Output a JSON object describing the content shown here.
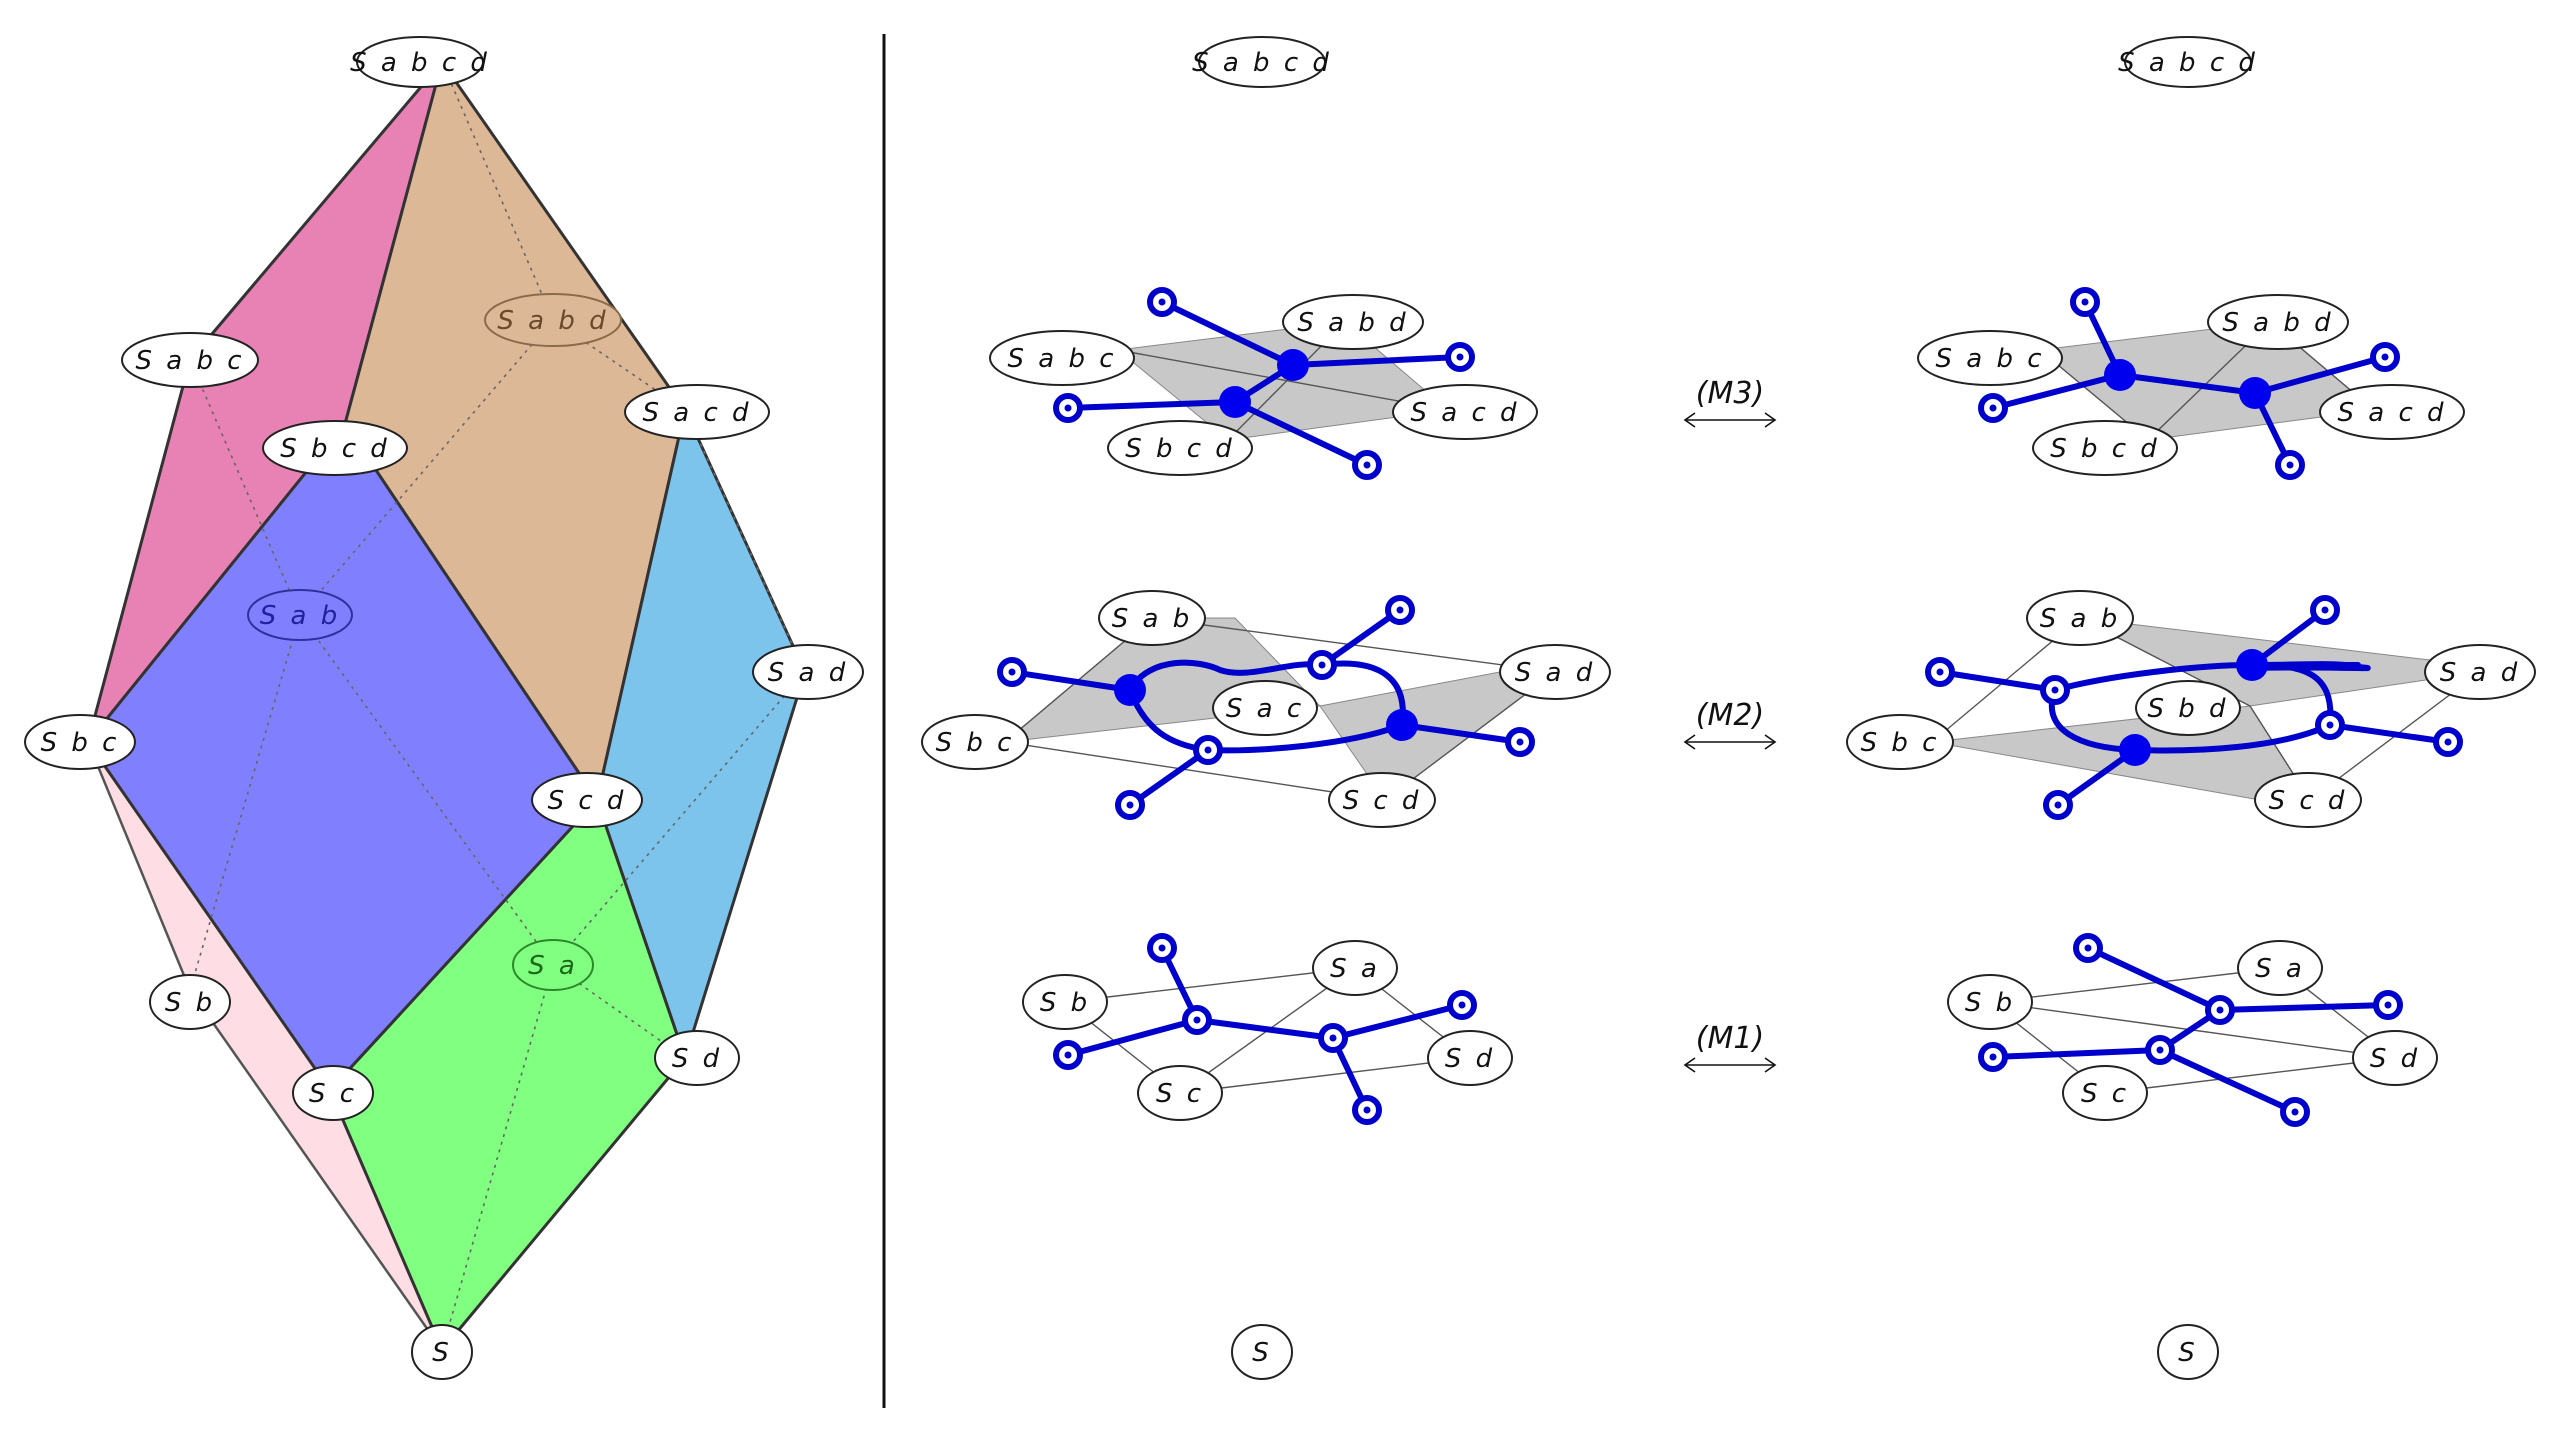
{
  "left_panel": {
    "labels": {
      "S": "S",
      "Sa": "S a",
      "Sb": "S b",
      "Sc": "S c",
      "Sd": "S d",
      "Sab": "S a b",
      "Sbc": "S b c",
      "Scd": "S c d",
      "Sad": "S a d",
      "Sabc": "S a b c",
      "Sbcd": "S b c d",
      "Sacd": "S a c d",
      "Sabd": "S a b d",
      "Sabcd": "S a b c d"
    },
    "face_colors": {
      "pink": "#e882b4",
      "tan": "#ddb896",
      "blue": "#8080ff",
      "cyan": "#7cc4ec",
      "green": "#80ff80",
      "light_pink": "#ffdde4"
    }
  },
  "right_panel": {
    "top_label_left": "S a b c d",
    "top_label_right": "S a b c d",
    "bottom_label_left": "S",
    "bottom_label_right": "S",
    "moves": [
      {
        "arrow_label": "(M3)",
        "left_labels": [
          "S a b c",
          "S a b d",
          "S a c d",
          "S b c d"
        ],
        "right_labels": [
          "S a b c",
          "S a b d",
          "S a c d",
          "S b c d"
        ]
      },
      {
        "arrow_label": "(M2)",
        "left_labels": [
          "S a b",
          "S a d",
          "S a c",
          "S b c",
          "S c d"
        ],
        "right_labels": [
          "S a b",
          "S a d",
          "S b d",
          "S b c",
          "S c d"
        ]
      },
      {
        "arrow_label": "(M1)",
        "left_labels": [
          "S b",
          "S a",
          "S c",
          "S d"
        ],
        "right_labels": [
          "S b",
          "S a",
          "S c",
          "S d"
        ]
      }
    ],
    "wire_color": "#0000cc"
  }
}
